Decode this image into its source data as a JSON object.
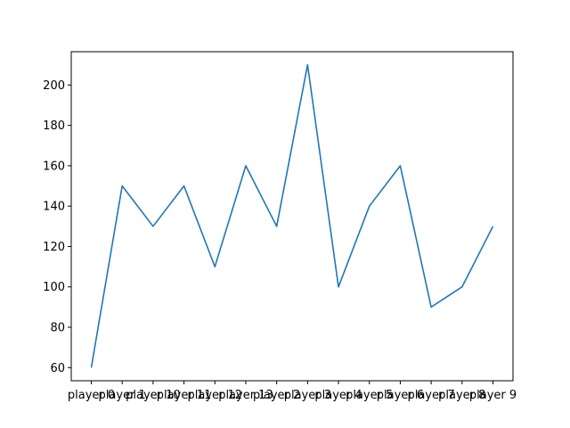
{
  "chart_data": {
    "type": "line",
    "categories": [
      "player 0",
      "player 1",
      "player 10",
      "player 11",
      "player 12",
      "player 13",
      "player 2",
      "player 3",
      "player 4",
      "player 5",
      "player 6",
      "player 7",
      "player 8",
      "player 9"
    ],
    "series": [
      {
        "values": [
          60,
          150,
          130,
          150,
          110,
          160,
          130,
          210,
          100,
          140,
          160,
          90,
          100,
          130
        ]
      }
    ],
    "title": "",
    "xlabel": "",
    "ylabel": "",
    "ylim": [
      53.5,
      216.5
    ],
    "yticks": [
      60,
      80,
      100,
      120,
      140,
      160,
      180,
      200
    ],
    "grid": false,
    "legend": "none",
    "line_color": "#1f77b4"
  }
}
